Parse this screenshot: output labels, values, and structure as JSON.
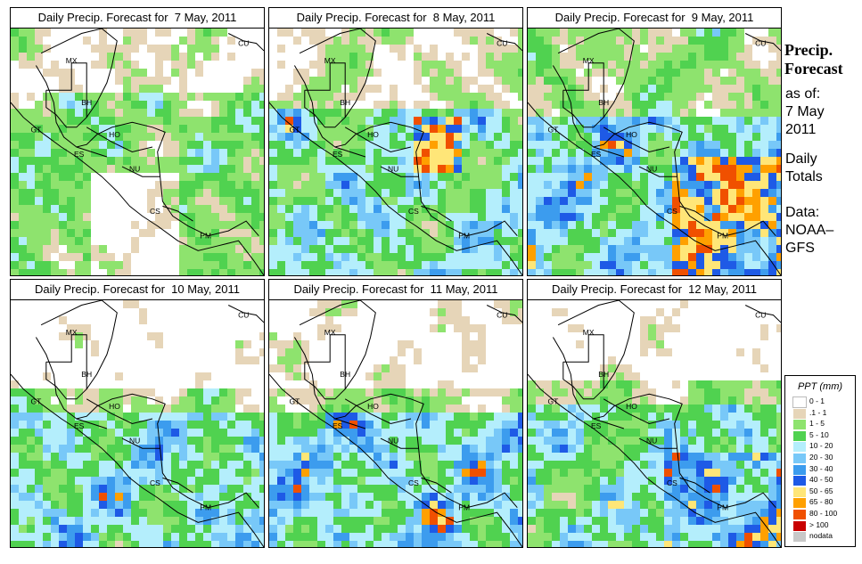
{
  "panels": [
    {
      "title": "Daily Precip. Forecast for  7 May, 2011"
    },
    {
      "title": "Daily Precip. Forecast for  8 May, 2011"
    },
    {
      "title": "Daily Precip. Forecast for  9 May, 2011"
    },
    {
      "title": "Daily Precip. Forecast for  10 May, 2011"
    },
    {
      "title": "Daily Precip. Forecast for  11 May, 2011"
    },
    {
      "title": "Daily Precip. Forecast for  12 May, 2011"
    }
  ],
  "country_labels": {
    "cu": "CU",
    "mx": "MX",
    "bh": "BH",
    "gt": "GT",
    "ho": "HO",
    "es": "ES",
    "nu": "NU",
    "cs": "CS",
    "pm": "PM"
  },
  "sidebar": {
    "heading_line1": "Precip.",
    "heading_line2": "Forecast",
    "asof_label": "as of:",
    "date_line1": "7 May",
    "date_line2": "2011",
    "totals_line1": "Daily",
    "totals_line2": "Totals",
    "data_line1": "Data:",
    "data_line2": "NOAA–",
    "data_line3": "GFS"
  },
  "legend": {
    "title": "PPT (mm)",
    "bins": [
      {
        "label": "0 - 1",
        "color": "#ffffff"
      },
      {
        "label": ".1 - 1",
        "color": "#e6d5b8"
      },
      {
        "label": "1 - 5",
        "color": "#8ee36e"
      },
      {
        "label": "5 - 10",
        "color": "#50d250"
      },
      {
        "label": "10 - 20",
        "color": "#b4eefc"
      },
      {
        "label": "20 - 30",
        "color": "#78c8f8"
      },
      {
        "label": "30 - 40",
        "color": "#3c9cee"
      },
      {
        "label": "40 - 50",
        "color": "#1e5ae6"
      },
      {
        "label": "50 - 65",
        "color": "#ffe678"
      },
      {
        "label": "65 - 80",
        "color": "#ffa000"
      },
      {
        "label": "80 - 100",
        "color": "#f05000"
      },
      {
        "label": "> 100",
        "color": "#c80000"
      },
      {
        "label": "nodata",
        "color": "#c8c8c8"
      }
    ]
  }
}
